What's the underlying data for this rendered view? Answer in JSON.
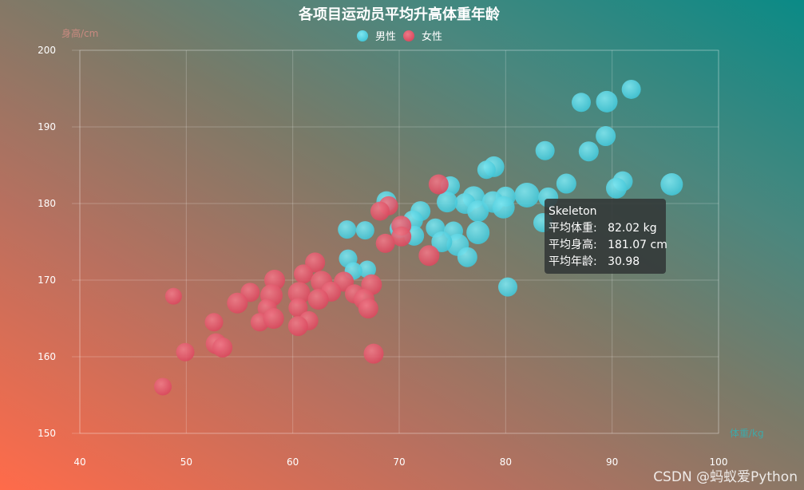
{
  "chart_data": {
    "type": "scatter",
    "title": "各项目运动员平均升高体重年龄",
    "xlabel": "体重/kg",
    "ylabel": "身高/cm",
    "xlim": [
      40,
      100
    ],
    "ylim": [
      150,
      200
    ],
    "x_ticks": [
      40,
      50,
      60,
      70,
      80,
      90,
      100
    ],
    "y_ticks": [
      150,
      160,
      170,
      180,
      190,
      200
    ],
    "grid": true,
    "legend_position": "top-center",
    "series": [
      {
        "name": "男性",
        "color": "#4fd1e0",
        "points": [
          [
            91.8,
            194.9,
            24
          ],
          [
            89.5,
            193.3,
            27
          ],
          [
            87.1,
            193.2,
            24
          ],
          [
            89.4,
            188.8,
            25
          ],
          [
            87.8,
            186.8,
            25
          ],
          [
            83.7,
            186.9,
            24
          ],
          [
            78.9,
            184.8,
            26
          ],
          [
            78.2,
            184.4,
            23
          ],
          [
            85.7,
            182.6,
            25
          ],
          [
            91.0,
            182.9,
            25
          ],
          [
            90.4,
            182.0,
            26
          ],
          [
            95.6,
            182.5,
            28
          ],
          [
            74.8,
            182.3,
            24
          ],
          [
            82.0,
            181.1,
            31
          ],
          [
            80.0,
            180.9,
            25
          ],
          [
            84.0,
            180.8,
            25
          ],
          [
            77.0,
            180.8,
            28
          ],
          [
            76.2,
            180.0,
            26
          ],
          [
            68.8,
            180.3,
            25
          ],
          [
            74.5,
            180.2,
            26
          ],
          [
            77.4,
            179.0,
            27
          ],
          [
            78.8,
            180.2,
            27
          ],
          [
            79.8,
            179.5,
            28
          ],
          [
            83.5,
            177.5,
            24
          ],
          [
            72.0,
            179.0,
            25
          ],
          [
            71.3,
            177.8,
            25
          ],
          [
            73.4,
            176.8,
            24
          ],
          [
            70.0,
            176.7,
            24
          ],
          [
            71.4,
            175.8,
            25
          ],
          [
            65.1,
            176.6,
            23
          ],
          [
            66.8,
            176.5,
            23
          ],
          [
            75.1,
            176.4,
            24
          ],
          [
            77.4,
            176.2,
            29
          ],
          [
            75.5,
            174.6,
            28
          ],
          [
            74.0,
            175.0,
            26
          ],
          [
            76.4,
            173.0,
            25
          ],
          [
            65.2,
            172.8,
            23
          ],
          [
            67.0,
            171.4,
            22
          ],
          [
            65.7,
            171.2,
            22
          ],
          [
            80.2,
            169.1,
            24
          ]
        ]
      },
      {
        "name": "女性",
        "color": "#e0566a",
        "points": [
          [
            73.7,
            182.5,
            25
          ],
          [
            69.0,
            179.7,
            24
          ],
          [
            68.2,
            179.0,
            24
          ],
          [
            70.2,
            177.1,
            25
          ],
          [
            70.2,
            175.7,
            25
          ],
          [
            68.7,
            174.8,
            24
          ],
          [
            72.8,
            173.2,
            26
          ],
          [
            62.1,
            172.3,
            25
          ],
          [
            61.0,
            170.8,
            24
          ],
          [
            58.3,
            170.0,
            26
          ],
          [
            62.7,
            169.8,
            27
          ],
          [
            67.4,
            169.4,
            26
          ],
          [
            64.8,
            169.8,
            25
          ],
          [
            56.0,
            168.4,
            24
          ],
          [
            63.6,
            168.5,
            25
          ],
          [
            65.8,
            168.2,
            24
          ],
          [
            60.6,
            168.3,
            28
          ],
          [
            58.0,
            168.0,
            28
          ],
          [
            48.8,
            167.9,
            21
          ],
          [
            66.7,
            167.5,
            26
          ],
          [
            62.4,
            167.5,
            26
          ],
          [
            54.8,
            167.0,
            26
          ],
          [
            57.6,
            166.3,
            24
          ],
          [
            60.5,
            166.4,
            24
          ],
          [
            67.1,
            166.3,
            25
          ],
          [
            52.6,
            164.5,
            23
          ],
          [
            56.9,
            164.5,
            23
          ],
          [
            58.2,
            165.0,
            26
          ],
          [
            61.5,
            164.7,
            24
          ],
          [
            60.5,
            164.0,
            25
          ],
          [
            52.8,
            161.7,
            26
          ],
          [
            53.4,
            161.2,
            25
          ],
          [
            49.9,
            160.6,
            23
          ],
          [
            67.6,
            160.4,
            25
          ],
          [
            47.8,
            156.1,
            22
          ]
        ]
      }
    ],
    "tooltip": {
      "name": "Skeleton",
      "weight_label": "平均体重:",
      "weight_value": "82.02 kg",
      "height_label": "平均身高:",
      "height_value": "181.07 cm",
      "age_label": "平均年龄:",
      "age_value": "30.98"
    }
  },
  "watermark": "CSDN @蚂蚁爱Python"
}
